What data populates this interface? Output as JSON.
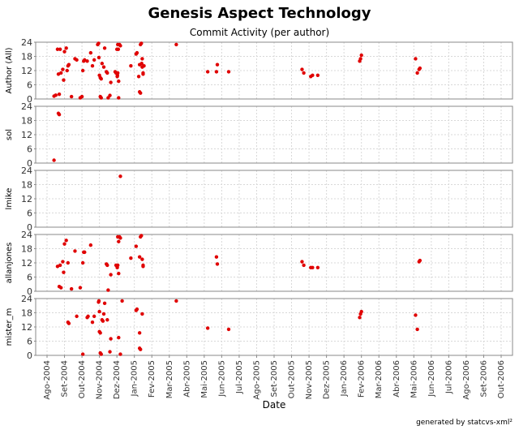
{
  "chart_data": {
    "type": "scatter",
    "title": "Genesis Aspect Technology",
    "subtitle": "Commit Activity (per author)",
    "xlabel": "Date",
    "footer": "generated by statcvs-xml²",
    "x_ticks": [
      "Ago-2004",
      "Set-2004",
      "Out-2004",
      "Nov-2004",
      "Dez-2004",
      "Jan-2005",
      "Fev-2005",
      "Mar-2005",
      "Abr-2005",
      "Mai-2005",
      "Jun-2005",
      "Jul-2005",
      "Ago-2005",
      "Set-2005",
      "Out-2005",
      "Nov-2005",
      "Dez-2005",
      "Jan-2006",
      "Fev-2006",
      "Mar-2006",
      "Abr-2006",
      "Mai-2006",
      "Jun-2006",
      "Jul-2006",
      "Ago-2006",
      "Set-2006",
      "Out-2006"
    ],
    "ylim": [
      0,
      24
    ],
    "y_ticks": [
      0,
      6,
      12,
      18,
      24
    ],
    "grid": true,
    "marker_color": "#e00000",
    "panels": [
      {
        "ylabel": "Author (All)",
        "points": [
          [
            0.4,
            1.2
          ],
          [
            0.5,
            1.6
          ],
          [
            0.6,
            21
          ],
          [
            0.65,
            10.5
          ],
          [
            0.7,
            2
          ],
          [
            0.75,
            21
          ],
          [
            0.8,
            11
          ],
          [
            0.9,
            12.5
          ],
          [
            0.95,
            8
          ],
          [
            1.0,
            20
          ],
          [
            1.1,
            21.5
          ],
          [
            1.15,
            12
          ],
          [
            1.2,
            14
          ],
          [
            1.25,
            14.5
          ],
          [
            1.4,
            1
          ],
          [
            1.6,
            17
          ],
          [
            1.7,
            16.5
          ],
          [
            1.9,
            0.5
          ],
          [
            2.0,
            1
          ],
          [
            2.05,
            12
          ],
          [
            2.1,
            16
          ],
          [
            2.15,
            16.5
          ],
          [
            2.3,
            16
          ],
          [
            2.5,
            19.5
          ],
          [
            2.6,
            14
          ],
          [
            2.7,
            16.5
          ],
          [
            2.9,
            23
          ],
          [
            2.95,
            23.5
          ],
          [
            2.97,
            17.5
          ],
          [
            3.0,
            10
          ],
          [
            3.05,
            9
          ],
          [
            3.1,
            8.5
          ],
          [
            3.05,
            1
          ],
          [
            3.1,
            0.5
          ],
          [
            3.15,
            15
          ],
          [
            3.25,
            13.5
          ],
          [
            3.3,
            21.5
          ],
          [
            3.4,
            11.5
          ],
          [
            3.45,
            11
          ],
          [
            3.5,
            0.5
          ],
          [
            3.6,
            1.5
          ],
          [
            3.65,
            7
          ],
          [
            3.9,
            11.5
          ],
          [
            3.95,
            11
          ],
          [
            4.0,
            21
          ],
          [
            4.02,
            9.5
          ],
          [
            4.03,
            10
          ],
          [
            4.05,
            11
          ],
          [
            4.05,
            23
          ],
          [
            4.08,
            21
          ],
          [
            4.1,
            7.5
          ],
          [
            4.1,
            0.5
          ],
          [
            4.15,
            23
          ],
          [
            4.2,
            22.5
          ],
          [
            4.8,
            14
          ],
          [
            5.1,
            19
          ],
          [
            5.15,
            19.5
          ],
          [
            5.3,
            14.5
          ],
          [
            5.25,
            9.5
          ],
          [
            5.3,
            3
          ],
          [
            5.35,
            2.5
          ],
          [
            5.35,
            23
          ],
          [
            5.4,
            23.5
          ],
          [
            5.42,
            15
          ],
          [
            5.45,
            17
          ],
          [
            5.45,
            13.5
          ],
          [
            5.5,
            11
          ],
          [
            5.55,
            14
          ],
          [
            5.5,
            10.5
          ],
          [
            7.4,
            23
          ],
          [
            9.2,
            11.5
          ],
          [
            9.7,
            11.5
          ],
          [
            9.75,
            14.5
          ],
          [
            10.4,
            11.5
          ],
          [
            14.6,
            12.5
          ],
          [
            14.7,
            11
          ],
          [
            15.1,
            9.5
          ],
          [
            15.2,
            10
          ],
          [
            15.5,
            10
          ],
          [
            17.9,
            16
          ],
          [
            17.95,
            17
          ],
          [
            18.0,
            18.5
          ],
          [
            21.1,
            17
          ],
          [
            21.2,
            11
          ],
          [
            21.3,
            12.5
          ],
          [
            21.35,
            13
          ]
        ]
      },
      {
        "ylabel": "sol",
        "points": [
          [
            0.4,
            1.2
          ],
          [
            0.65,
            21
          ],
          [
            0.7,
            20.5
          ]
        ]
      },
      {
        "ylabel": "lmike",
        "points": [
          [
            4.2,
            21.5
          ]
        ]
      },
      {
        "ylabel": "allanjones",
        "points": [
          [
            0.6,
            10.5
          ],
          [
            0.7,
            2
          ],
          [
            0.75,
            11
          ],
          [
            0.8,
            1.5
          ],
          [
            0.9,
            12.5
          ],
          [
            0.95,
            8
          ],
          [
            1.0,
            20
          ],
          [
            1.1,
            21.5
          ],
          [
            1.2,
            12
          ],
          [
            1.4,
            1
          ],
          [
            1.6,
            17
          ],
          [
            1.9,
            1.5
          ],
          [
            2.05,
            12
          ],
          [
            2.1,
            16.5
          ],
          [
            2.15,
            16.5
          ],
          [
            2.5,
            19.5
          ],
          [
            3.4,
            11.5
          ],
          [
            3.45,
            11
          ],
          [
            3.5,
            0.5
          ],
          [
            3.65,
            7
          ],
          [
            3.95,
            11
          ],
          [
            4.02,
            10
          ],
          [
            4.05,
            11
          ],
          [
            4.05,
            23
          ],
          [
            4.1,
            21
          ],
          [
            4.1,
            7.5
          ],
          [
            4.15,
            23
          ],
          [
            4.2,
            22.5
          ],
          [
            4.8,
            14
          ],
          [
            5.1,
            19
          ],
          [
            5.3,
            14.5
          ],
          [
            5.35,
            23
          ],
          [
            5.4,
            23.5
          ],
          [
            5.45,
            13.5
          ],
          [
            5.5,
            11
          ],
          [
            5.5,
            10.5
          ],
          [
            9.7,
            14.5
          ],
          [
            9.75,
            11.5
          ],
          [
            14.6,
            12.5
          ],
          [
            14.7,
            11
          ],
          [
            15.1,
            10
          ],
          [
            15.2,
            10
          ],
          [
            15.5,
            10
          ],
          [
            21.3,
            12.5
          ],
          [
            21.35,
            13
          ]
        ]
      },
      {
        "ylabel": "mister_m",
        "points": [
          [
            1.2,
            14
          ],
          [
            1.25,
            13.5
          ],
          [
            1.7,
            16.5
          ],
          [
            2.05,
            0.5
          ],
          [
            2.3,
            16
          ],
          [
            2.35,
            16.5
          ],
          [
            2.6,
            14
          ],
          [
            2.7,
            16.5
          ],
          [
            2.95,
            22.5
          ],
          [
            2.97,
            23
          ],
          [
            3.0,
            18.5
          ],
          [
            3.0,
            10
          ],
          [
            3.05,
            9.5
          ],
          [
            3.05,
            1
          ],
          [
            3.1,
            0.5
          ],
          [
            3.15,
            15
          ],
          [
            3.2,
            14.5
          ],
          [
            3.25,
            17.5
          ],
          [
            3.3,
            22
          ],
          [
            3.45,
            15
          ],
          [
            3.6,
            1.5
          ],
          [
            3.65,
            7
          ],
          [
            4.1,
            7.5
          ],
          [
            4.2,
            0.5
          ],
          [
            4.3,
            23
          ],
          [
            5.1,
            19
          ],
          [
            5.15,
            19.5
          ],
          [
            5.3,
            9.5
          ],
          [
            5.3,
            3
          ],
          [
            5.35,
            2.5
          ],
          [
            5.45,
            17.5
          ],
          [
            7.4,
            23
          ],
          [
            9.2,
            11.5
          ],
          [
            10.4,
            11
          ],
          [
            17.9,
            16
          ],
          [
            17.95,
            17.5
          ],
          [
            18.0,
            18.5
          ],
          [
            21.1,
            17
          ],
          [
            21.2,
            11
          ]
        ]
      }
    ]
  }
}
